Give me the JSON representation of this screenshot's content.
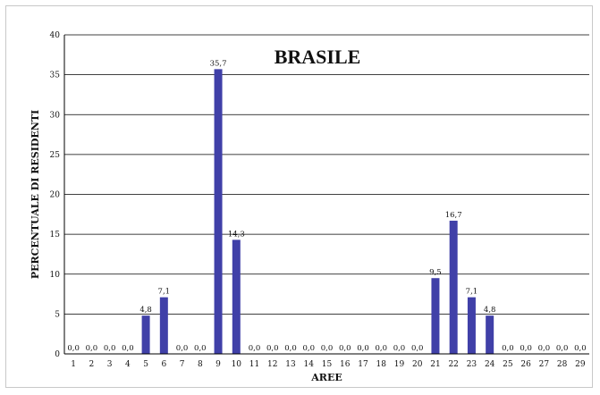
{
  "chart_data": {
    "type": "bar",
    "title": "BRASILE",
    "xlabel": "AREE",
    "ylabel": "PERCENTUALE DI RESIDENTI",
    "ylim": [
      0,
      40
    ],
    "yticks": [
      "0",
      "5",
      "10",
      "15",
      "20",
      "25",
      "30",
      "35",
      "40"
    ],
    "categories": [
      "1",
      "2",
      "3",
      "4",
      "5",
      "6",
      "7",
      "8",
      "9",
      "10",
      "11",
      "12",
      "13",
      "14",
      "15",
      "16",
      "17",
      "18",
      "19",
      "20",
      "21",
      "22",
      "23",
      "24",
      "25",
      "26",
      "27",
      "28",
      "29"
    ],
    "values": [
      0,
      0,
      0,
      0,
      4.8,
      7.1,
      0,
      0,
      35.7,
      14.3,
      0,
      0,
      0,
      0,
      0,
      0,
      0,
      0,
      0,
      0,
      9.5,
      16.7,
      7.1,
      4.8,
      0,
      0,
      0,
      0,
      0
    ],
    "data_labels": [
      "0,0",
      "0,0",
      "0,0",
      "0,0",
      "4,8",
      "7,1",
      "0,0",
      "0,0",
      "35,7",
      "14,3",
      "0,0",
      "0,0",
      "0,0",
      "0,0",
      "0,0",
      "0,0",
      "0,0",
      "0,0",
      "0,0",
      "0,0",
      "9,5",
      "16,7",
      "7,1",
      "4,8",
      "0,0",
      "0,0",
      "0,0",
      "0,0",
      "0,0"
    ],
    "grid": true,
    "legend": "none",
    "colors": {
      "bar": "#4040a8",
      "grid": "#000000",
      "axis": "#000000"
    }
  }
}
